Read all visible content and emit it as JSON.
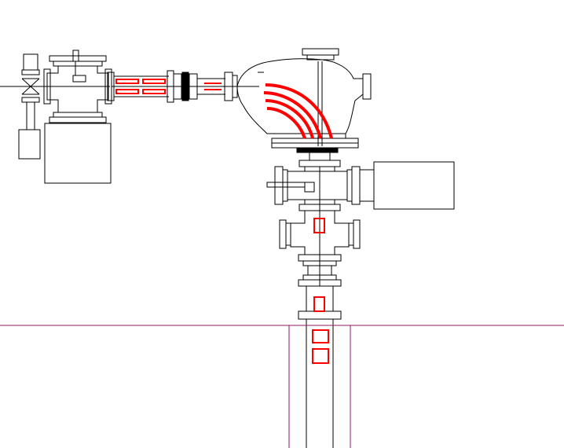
{
  "drawing": {
    "background": "#ffffff",
    "line_color": "#000000",
    "highlight_color": "#ff0000",
    "floor_line_color": "#8b1a6b"
  },
  "components": [
    {
      "name": "left-valve-assembly",
      "icon": "gate-valve-icon"
    },
    {
      "name": "left-six-way-cross",
      "icon": "pipe-cross-icon"
    },
    {
      "name": "left-pump-box",
      "icon": "pump-icon"
    },
    {
      "name": "horizontal-beamline",
      "icon": "beam-pipe-icon"
    },
    {
      "name": "bellows-coupling",
      "icon": "bellows-icon"
    },
    {
      "name": "bending-magnet-chamber",
      "icon": "dipole-magnet-icon"
    },
    {
      "name": "right-six-way-cross",
      "icon": "pipe-cross-icon"
    },
    {
      "name": "right-pump-box",
      "icon": "pump-icon"
    },
    {
      "name": "lower-four-way-cross",
      "icon": "pipe-cross-icon"
    },
    {
      "name": "vertical-beamline",
      "icon": "beam-pipe-icon"
    },
    {
      "name": "floor-line",
      "icon": "floor-icon"
    }
  ]
}
